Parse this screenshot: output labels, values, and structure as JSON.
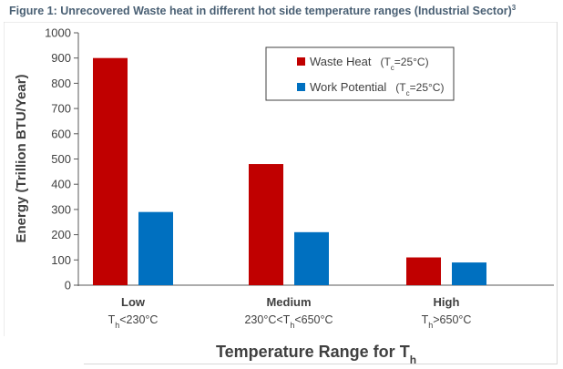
{
  "figure": {
    "caption": "Figure 1: Unrecovered Waste heat in different hot side temperature ranges (Industrial Sector)",
    "caption_ref": "3"
  },
  "colors": {
    "waste_heat": "#c00000",
    "work_potential": "#0070c0",
    "caption": "#4a6074"
  },
  "chart_data": {
    "type": "bar",
    "title": "",
    "xlabel": "Temperature Range for Th",
    "ylabel": "Energy (Trillion BTU/Year)",
    "ylim": [
      0,
      1000
    ],
    "yticks": [
      0,
      100,
      200,
      300,
      400,
      500,
      600,
      700,
      800,
      900,
      1000
    ],
    "grid": false,
    "legend_position": "top-right",
    "categories": [
      "Low",
      "Medium",
      "High"
    ],
    "category_sublabels": [
      "Th<230°C",
      "230°C<Th<650°C",
      "Th>650°C"
    ],
    "series": [
      {
        "name": "Waste Heat (Tc=25°C)",
        "values": [
          900,
          480,
          110
        ]
      },
      {
        "name": "Work Potential (Tc=25°C)",
        "values": [
          290,
          210,
          90
        ]
      }
    ]
  }
}
